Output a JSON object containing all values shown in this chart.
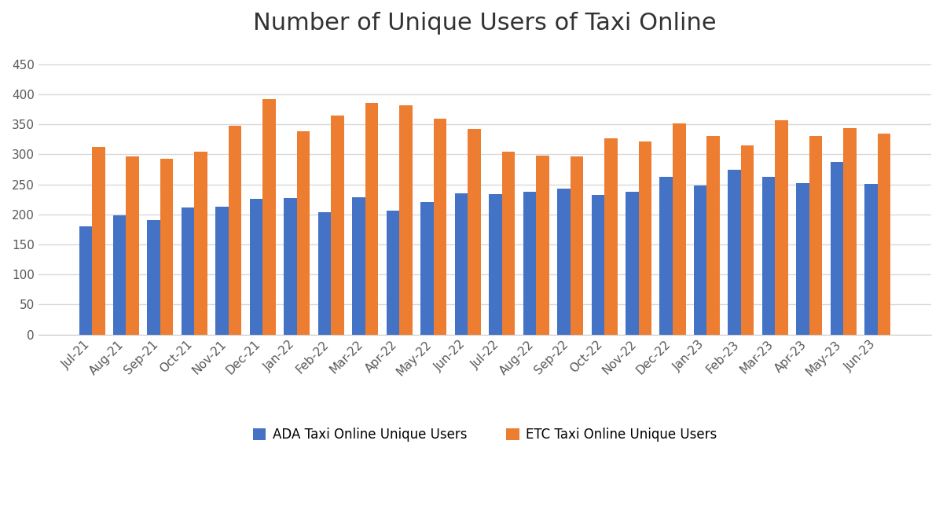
{
  "title": "Number of Unique Users of Taxi Online",
  "categories": [
    "Jul-21",
    "Aug-21",
    "Sep-21",
    "Oct-21",
    "Nov-21",
    "Dec-21",
    "Jan-22",
    "Feb-22",
    "Mar-22",
    "Apr-22",
    "May-22",
    "Jun-22",
    "Jul-22",
    "Aug-22",
    "Sep-22",
    "Oct-22",
    "Nov-22",
    "Dec-22",
    "Jan-23",
    "Feb-23",
    "Mar-23",
    "Apr-23",
    "May-23",
    "Jun-23"
  ],
  "ada_values": [
    180,
    198,
    190,
    212,
    213,
    226,
    227,
    204,
    229,
    206,
    220,
    235,
    234,
    238,
    243,
    233,
    238,
    263,
    248,
    274,
    263,
    252,
    288,
    251
  ],
  "etc_values": [
    312,
    296,
    292,
    305,
    347,
    392,
    339,
    365,
    386,
    382,
    360,
    343,
    305,
    298,
    296,
    327,
    322,
    351,
    330,
    315,
    357,
    330,
    344,
    334
  ],
  "ada_color": "#4472c4",
  "etc_color": "#ed7d31",
  "ada_label": "ADA Taxi Online Unique Users",
  "etc_label": "ETC Taxi Online Unique Users",
  "ylim": [
    0,
    480
  ],
  "yticks": [
    0,
    50,
    100,
    150,
    200,
    250,
    300,
    350,
    400,
    450
  ],
  "background_color": "#ffffff",
  "grid_color": "#d9d9d9",
  "title_fontsize": 22,
  "tick_fontsize": 11,
  "legend_fontsize": 12,
  "bar_width": 0.38
}
